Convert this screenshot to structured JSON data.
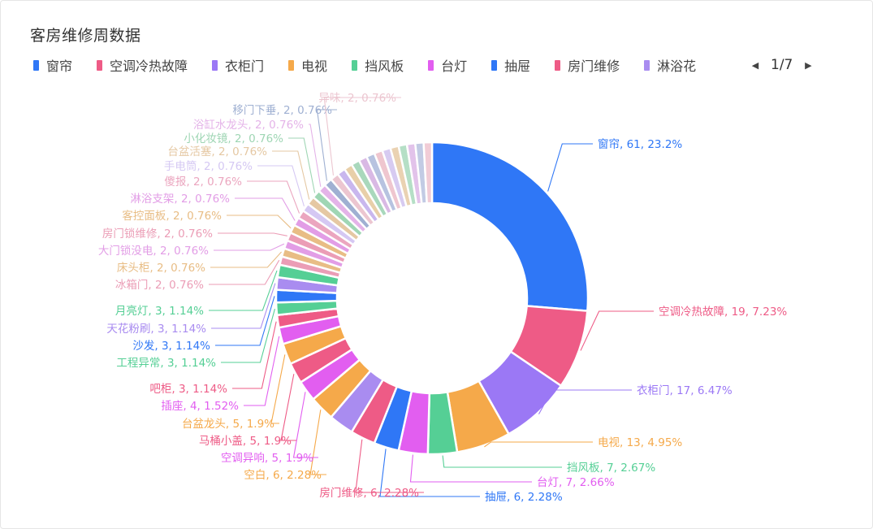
{
  "chart_data": {
    "type": "pie",
    "variant": "donut",
    "title": "客房维修周数据",
    "legend": {
      "placement": "top-left",
      "visible_items": [
        "窗帘",
        "空调冷热故障",
        "衣柜门",
        "电视",
        "挡风板",
        "台灯",
        "抽屉",
        "房门维修",
        "淋浴花"
      ],
      "page": "1/7",
      "prev_icon": "◀",
      "next_icon": "▶"
    },
    "slices": [
      {
        "name": "窗帘",
        "value": 61,
        "percent": "23.2%",
        "color": "#2f77f6"
      },
      {
        "name": "空调冷热故障",
        "value": 19,
        "percent": "7.23%",
        "color": "#ee5b86"
      },
      {
        "name": "衣柜门",
        "value": 17,
        "percent": "6.47%",
        "color": "#9b78f5"
      },
      {
        "name": "电视",
        "value": 13,
        "percent": "4.95%",
        "color": "#f5a94a"
      },
      {
        "name": "挡风板",
        "value": 7,
        "percent": "2.67%",
        "color": "#55cf95"
      },
      {
        "name": "台灯",
        "value": 7,
        "percent": "2.66%",
        "color": "#e25ef0"
      },
      {
        "name": "抽屉",
        "value": 6,
        "percent": "2.28%",
        "color": "#2f77f6"
      },
      {
        "name": "房门维修",
        "value": 6,
        "percent": "2.28%",
        "color": "#ee5b86"
      },
      {
        "name": "淋浴花",
        "value": 6,
        "percent": "",
        "color": "#a98cf0"
      },
      {
        "name": "空白",
        "value": 6,
        "percent": "2.28%",
        "color": "#f5a94a"
      },
      {
        "name": "空调异响",
        "value": 5,
        "percent": "1.9%",
        "color": "#e25ef0"
      },
      {
        "name": "马桶小盖",
        "value": 5,
        "percent": "1.9%",
        "color": "#ee5b86"
      },
      {
        "name": "台盆龙头",
        "value": 5,
        "percent": "1.9%",
        "color": "#f5a94a"
      },
      {
        "name": "插座",
        "value": 4,
        "percent": "1.52%",
        "color": "#e25ef0"
      },
      {
        "name": "吧柜",
        "value": 3,
        "percent": "1.14%",
        "color": "#ee5b86"
      },
      {
        "name": "工程异常",
        "value": 3,
        "percent": "1.14%",
        "color": "#55cf95"
      },
      {
        "name": "沙发",
        "value": 3,
        "percent": "1.14%",
        "color": "#2f77f6"
      },
      {
        "name": "天花粉刷",
        "value": 3,
        "percent": "1.14%",
        "color": "#a98cf0"
      },
      {
        "name": "月亮灯",
        "value": 3,
        "percent": "1.14%",
        "color": "#55cf95"
      },
      {
        "name": "冰箱门",
        "value": 2,
        "percent": "0.76%",
        "color": "#eb9db6"
      },
      {
        "name": "床头柜",
        "value": 2,
        "percent": "0.76%",
        "color": "#e8bd85"
      },
      {
        "name": "大门锁没电",
        "value": 2,
        "percent": "0.76%",
        "color": "#e29de6"
      },
      {
        "name": "房门锁维修",
        "value": 2,
        "percent": "0.76%",
        "color": "#eb9db6"
      },
      {
        "name": "客控面板",
        "value": 2,
        "percent": "0.76%",
        "color": "#e8bd85"
      },
      {
        "name": "淋浴支架",
        "value": 2,
        "percent": "0.76%",
        "color": "#e29de6"
      },
      {
        "name": "傻报",
        "value": 2,
        "percent": "0.76%",
        "color": "#eba6bf"
      },
      {
        "name": "手电筒",
        "value": 2,
        "percent": "0.76%",
        "color": "#d5c8f3"
      },
      {
        "name": "台盆活塞",
        "value": 2,
        "percent": "0.76%",
        "color": "#e5c8a3"
      },
      {
        "name": "小化妆镜",
        "value": 2,
        "percent": "0.76%",
        "color": "#9fd6b4"
      },
      {
        "name": "浴缸水龙头",
        "value": 2,
        "percent": "0.76%",
        "color": "#e4b3e8"
      },
      {
        "name": "移门下垂",
        "value": 2,
        "percent": "0.76%",
        "color": "#9fb0d2"
      },
      {
        "name": "异味",
        "value": 2,
        "percent": "0.76%",
        "color": "#ecc6d0"
      },
      {
        "name": "",
        "value": 2,
        "percent": "",
        "color": "#c9b7ee"
      },
      {
        "name": "",
        "value": 2,
        "percent": "",
        "color": "#e8cfa9"
      },
      {
        "name": "",
        "value": 2,
        "percent": "",
        "color": "#a9d8bc"
      },
      {
        "name": "",
        "value": 2,
        "percent": "",
        "color": "#d9b9e4"
      },
      {
        "name": "",
        "value": 2,
        "percent": "",
        "color": "#b7c3e0"
      },
      {
        "name": "",
        "value": 2,
        "percent": "",
        "color": "#efc6cf"
      },
      {
        "name": "",
        "value": 2,
        "percent": "",
        "color": "#d7cbf1"
      },
      {
        "name": "",
        "value": 2,
        "percent": "",
        "color": "#ead2b2"
      },
      {
        "name": "",
        "value": 2,
        "percent": "",
        "color": "#b5dfc6"
      },
      {
        "name": "",
        "value": 2,
        "percent": "",
        "color": "#e2c3ea"
      },
      {
        "name": "",
        "value": 2,
        "percent": "",
        "color": "#c2cbe4"
      },
      {
        "name": "",
        "value": 2,
        "percent": "",
        "color": "#f1ccd6"
      }
    ],
    "label_format": "{name}, {value}, {percent}"
  }
}
